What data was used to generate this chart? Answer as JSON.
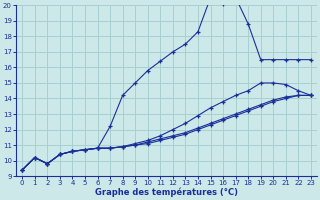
{
  "xlabel": "Graphe des températures (°C)",
  "xlim": [
    -0.5,
    23.5
  ],
  "ylim": [
    9,
    20
  ],
  "xticks": [
    0,
    1,
    2,
    3,
    4,
    5,
    6,
    7,
    8,
    9,
    10,
    11,
    12,
    13,
    14,
    15,
    16,
    17,
    18,
    19,
    20,
    21,
    22,
    23
  ],
  "yticks": [
    9,
    10,
    11,
    12,
    13,
    14,
    15,
    16,
    17,
    18,
    19,
    20
  ],
  "background_color": "#cce8e8",
  "grid_color": "#a8d0d0",
  "line_color": "#1a2f9a",
  "line1_x": [
    0,
    1,
    2,
    3,
    4,
    5,
    6,
    7,
    8,
    9,
    10,
    11,
    12,
    13,
    14,
    15,
    16,
    17,
    18,
    19,
    20,
    21,
    22,
    23
  ],
  "line1_y": [
    9.4,
    10.2,
    9.8,
    10.4,
    10.6,
    10.7,
    10.8,
    12.2,
    14.2,
    15.0,
    15.8,
    16.4,
    17.0,
    17.5,
    18.3,
    20.5,
    20.1,
    20.5,
    18.8,
    16.5,
    16.5,
    16.5,
    16.5,
    16.5
  ],
  "line2_x": [
    0,
    1,
    2,
    3,
    4,
    5,
    6,
    7,
    8,
    9,
    10,
    11,
    12,
    13,
    14,
    15,
    16,
    17,
    18,
    19,
    20,
    21,
    22,
    23
  ],
  "line2_y": [
    9.4,
    10.2,
    9.8,
    10.4,
    10.6,
    10.7,
    10.8,
    10.8,
    10.9,
    11.1,
    11.3,
    11.6,
    12.0,
    12.4,
    12.9,
    13.4,
    13.8,
    14.2,
    14.5,
    15.0,
    15.0,
    14.9,
    14.5,
    14.2
  ],
  "line3_x": [
    0,
    1,
    2,
    3,
    4,
    5,
    6,
    7,
    8,
    9,
    10,
    11,
    12,
    13,
    14,
    15,
    16,
    17,
    18,
    19,
    20,
    21,
    22,
    23
  ],
  "line3_y": [
    9.4,
    10.2,
    9.8,
    10.4,
    10.6,
    10.7,
    10.8,
    10.8,
    10.9,
    11.0,
    11.2,
    11.4,
    11.6,
    11.8,
    12.1,
    12.4,
    12.7,
    13.0,
    13.3,
    13.6,
    13.9,
    14.1,
    14.2,
    14.2
  ],
  "line4_x": [
    0,
    1,
    2,
    3,
    4,
    5,
    6,
    7,
    8,
    9,
    10,
    11,
    12,
    13,
    14,
    15,
    16,
    17,
    18,
    19,
    20,
    21,
    22,
    23
  ],
  "line4_y": [
    9.4,
    10.2,
    9.8,
    10.4,
    10.6,
    10.7,
    10.8,
    10.8,
    10.9,
    11.0,
    11.1,
    11.3,
    11.5,
    11.7,
    12.0,
    12.3,
    12.6,
    12.9,
    13.2,
    13.5,
    13.8,
    14.0,
    14.2,
    14.2
  ]
}
